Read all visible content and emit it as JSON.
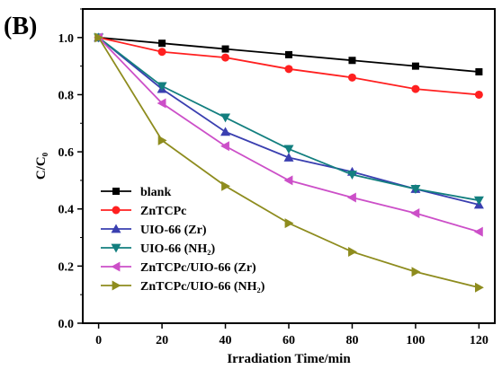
{
  "panel_label": "(B)",
  "chart_data": {
    "type": "line",
    "xlabel": "Irradiation Time/min",
    "ylabel": "C/C₀",
    "xlim": [
      -5,
      125
    ],
    "ylim": [
      0.0,
      1.1
    ],
    "x_ticks": [
      0,
      20,
      40,
      60,
      80,
      100,
      120
    ],
    "y_ticks": [
      0.0,
      0.2,
      0.4,
      0.6,
      0.8,
      1.0
    ],
    "y_tick_labels": [
      "0.0",
      "0.2",
      "0.4",
      "0.6",
      "0.8",
      "1.0"
    ],
    "x": [
      0,
      20,
      40,
      60,
      80,
      100,
      120
    ],
    "legend_position": "lower-left",
    "series": [
      {
        "name": "blank",
        "color": "#000000",
        "marker": "square",
        "values": [
          1.0,
          0.98,
          0.96,
          0.94,
          0.92,
          0.9,
          0.88
        ]
      },
      {
        "name": "ZnTCPc",
        "color": "#ff2020",
        "marker": "circle",
        "values": [
          1.0,
          0.95,
          0.93,
          0.89,
          0.86,
          0.82,
          0.8
        ]
      },
      {
        "name": "UIO-66 (Zr)",
        "color": "#3a3fb0",
        "marker": "triangle-up",
        "values": [
          1.0,
          0.82,
          0.67,
          0.58,
          0.53,
          0.47,
          0.415
        ]
      },
      {
        "name": "UIO-66 (NH₂)",
        "color": "#137f7f",
        "marker": "triangle-down",
        "values": [
          1.0,
          0.83,
          0.72,
          0.61,
          0.52,
          0.47,
          0.43
        ]
      },
      {
        "name": "ZnTCPc/UIO-66 (Zr)",
        "color": "#cc4fc8",
        "marker": "triangle-left",
        "values": [
          1.0,
          0.77,
          0.62,
          0.5,
          0.44,
          0.385,
          0.32
        ]
      },
      {
        "name": "ZnTCPc/UIO-66 (NH₂)",
        "color": "#8e8c1e",
        "marker": "triangle-right",
        "values": [
          1.0,
          0.64,
          0.48,
          0.35,
          0.25,
          0.18,
          0.125
        ]
      }
    ]
  }
}
